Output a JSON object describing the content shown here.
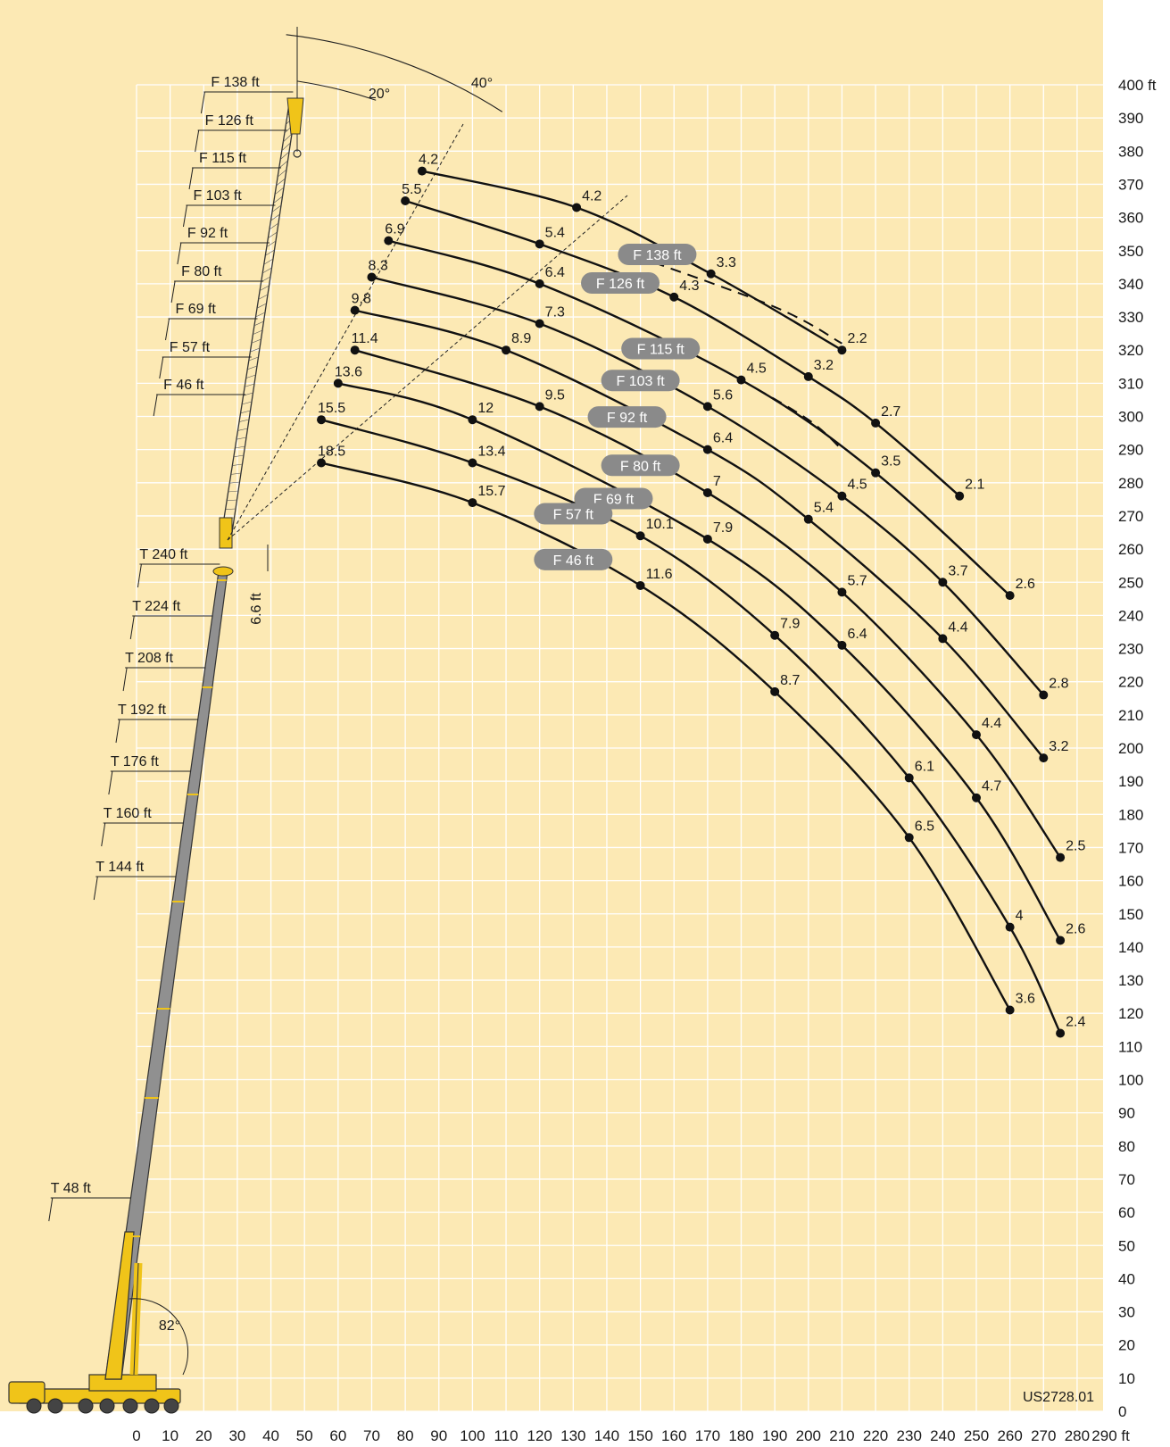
{
  "chart_data": {
    "type": "line",
    "xlabel": "",
    "ylabel": "",
    "x_unit": "ft",
    "y_unit": "ft",
    "xlim": [
      0,
      290
    ],
    "ylim": [
      0,
      400
    ],
    "grid": true,
    "x_ticks": [
      "0",
      "10",
      "20",
      "30",
      "40",
      "50",
      "60",
      "70",
      "80",
      "90",
      "100",
      "110",
      "120",
      "130",
      "140",
      "150",
      "160",
      "170",
      "180",
      "190",
      "200",
      "210",
      "220",
      "230",
      "240",
      "250",
      "260",
      "270",
      "280",
      "290 ft"
    ],
    "y_ticks": [
      "0",
      "10",
      "20",
      "30",
      "40",
      "50",
      "60",
      "70",
      "80",
      "90",
      "100",
      "110",
      "120",
      "130",
      "140",
      "150",
      "160",
      "170",
      "180",
      "190",
      "200",
      "210",
      "220",
      "230",
      "240",
      "250",
      "260",
      "270",
      "280",
      "290",
      "300",
      "310",
      "320",
      "330",
      "340",
      "350",
      "360",
      "370",
      "380",
      "390",
      "400 ft"
    ],
    "angles": {
      "luffing_20": "20°",
      "luffing_40": "40°",
      "main_boom": "82°"
    },
    "offset_label": "6.6 ft",
    "telescope_labels": [
      "T 48 ft",
      "T 144 ft",
      "T 160 ft",
      "T 176 ft",
      "T 192 ft",
      "T 208 ft",
      "T 224 ft",
      "T 240 ft"
    ],
    "fly_jib_labels": [
      "F 46 ft",
      "F 57 ft",
      "F 69 ft",
      "F 80 ft",
      "F 92 ft",
      "F 103 ft",
      "F 115 ft",
      "F 126 ft",
      "F 138 ft"
    ],
    "code": "US2728.01",
    "series": [
      {
        "name": "F 138 ft",
        "points": [
          {
            "x": 85,
            "y": 374,
            "v": "4.2"
          },
          {
            "x": 131,
            "y": 363,
            "v": "4.2"
          },
          {
            "x": 171,
            "y": 343,
            "v": "3.3"
          },
          {
            "x": 210,
            "y": 320,
            "v": "2.2"
          }
        ]
      },
      {
        "name": "F 126 ft",
        "points": [
          {
            "x": 80,
            "y": 365,
            "v": "5.5"
          },
          {
            "x": 120,
            "y": 352,
            "v": "5.4"
          },
          {
            "x": 160,
            "y": 336,
            "v": "4.3"
          },
          {
            "x": 200,
            "y": 312,
            "v": "3.2"
          },
          {
            "x": 220,
            "y": 298,
            "v": "2.7"
          },
          {
            "x": 245,
            "y": 276,
            "v": "2.1"
          }
        ]
      },
      {
        "name": "F 115 ft",
        "points": [
          {
            "x": 75,
            "y": 353,
            "v": "6.9"
          },
          {
            "x": 120,
            "y": 340,
            "v": "6.4"
          },
          {
            "x": 180,
            "y": 311,
            "v": "4.5"
          },
          {
            "x": 220,
            "y": 283,
            "v": "3.5"
          },
          {
            "x": 260,
            "y": 246,
            "v": "2.6"
          }
        ]
      },
      {
        "name": "F 103 ft",
        "points": [
          {
            "x": 70,
            "y": 342,
            "v": "8.3"
          },
          {
            "x": 120,
            "y": 328,
            "v": "7.3"
          },
          {
            "x": 170,
            "y": 303,
            "v": "5.6"
          },
          {
            "x": 210,
            "y": 276,
            "v": "4.5"
          },
          {
            "x": 240,
            "y": 250,
            "v": "3.7"
          },
          {
            "x": 270,
            "y": 216,
            "v": "2.8"
          }
        ]
      },
      {
        "name": "F 92 ft",
        "points": [
          {
            "x": 65,
            "y": 332,
            "v": "9.8"
          },
          {
            "x": 110,
            "y": 320,
            "v": "8.9"
          },
          {
            "x": 170,
            "y": 290,
            "v": "6.4"
          },
          {
            "x": 200,
            "y": 269,
            "v": "5.4"
          },
          {
            "x": 240,
            "y": 233,
            "v": "4.4"
          },
          {
            "x": 270,
            "y": 197,
            "v": "3.2"
          }
        ]
      },
      {
        "name": "F 80 ft",
        "points": [
          {
            "x": 65,
            "y": 320,
            "v": "11.4"
          },
          {
            "x": 120,
            "y": 303,
            "v": "9.5"
          },
          {
            "x": 170,
            "y": 277,
            "v": "7"
          },
          {
            "x": 210,
            "y": 247,
            "v": "5.7"
          },
          {
            "x": 250,
            "y": 204,
            "v": "4.4"
          },
          {
            "x": 275,
            "y": 167,
            "v": "2.5"
          }
        ]
      },
      {
        "name": "F 69 ft",
        "points": [
          {
            "x": 60,
            "y": 310,
            "v": "13.6"
          },
          {
            "x": 100,
            "y": 299,
            "v": "12"
          },
          {
            "x": 170,
            "y": 263,
            "v": "7.9"
          },
          {
            "x": 210,
            "y": 231,
            "v": "6.4"
          },
          {
            "x": 250,
            "y": 185,
            "v": "4.7"
          },
          {
            "x": 275,
            "y": 142,
            "v": "2.6"
          }
        ]
      },
      {
        "name": "F 57 ft",
        "points": [
          {
            "x": 55,
            "y": 299,
            "v": "15.5"
          },
          {
            "x": 100,
            "y": 286,
            "v": "13.4"
          },
          {
            "x": 150,
            "y": 264,
            "v": "10.1"
          },
          {
            "x": 190,
            "y": 234,
            "v": "7.9"
          },
          {
            "x": 230,
            "y": 191,
            "v": "6.1"
          },
          {
            "x": 260,
            "y": 146,
            "v": "4"
          },
          {
            "x": 275,
            "y": 114,
            "v": "2.4"
          }
        ]
      },
      {
        "name": "F 46 ft",
        "points": [
          {
            "x": 55,
            "y": 286,
            "v": "18.5"
          },
          {
            "x": 100,
            "y": 274,
            "v": "15.7"
          },
          {
            "x": 150,
            "y": 249,
            "v": "11.6"
          },
          {
            "x": 190,
            "y": 217,
            "v": "8.7"
          },
          {
            "x": 230,
            "y": 173,
            "v": "6.5"
          },
          {
            "x": 260,
            "y": 121,
            "v": "3.6"
          }
        ]
      }
    ]
  }
}
